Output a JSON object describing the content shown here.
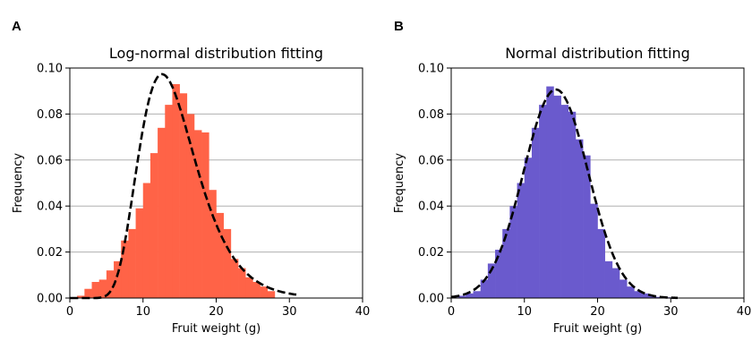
{
  "chart_data": [
    {
      "type": "bar",
      "panel_label": "A",
      "title": "Log-normal distribution fitting",
      "xlabel": "Fruit weight (g)",
      "ylabel": "Frequency",
      "xlim": [
        0,
        40
      ],
      "ylim": [
        0,
        0.1
      ],
      "xticks": [
        0,
        10,
        20,
        30,
        40
      ],
      "yticks": [
        0.0,
        0.02,
        0.04,
        0.06,
        0.08,
        0.1
      ],
      "yticks_labels": [
        "0.00",
        "0.02",
        "0.04",
        "0.06",
        "0.08",
        "0.10"
      ],
      "grid": "y",
      "bar_color": "#ff6347",
      "fit_line_color": "#000000",
      "bin_width": 1,
      "bins": [
        {
          "x": 0,
          "y": 0.0003
        },
        {
          "x": 1,
          "y": 0.001
        },
        {
          "x": 2,
          "y": 0.004
        },
        {
          "x": 3,
          "y": 0.007
        },
        {
          "x": 4,
          "y": 0.008
        },
        {
          "x": 5,
          "y": 0.012
        },
        {
          "x": 6,
          "y": 0.016
        },
        {
          "x": 7,
          "y": 0.025
        },
        {
          "x": 8,
          "y": 0.03
        },
        {
          "x": 9,
          "y": 0.039
        },
        {
          "x": 10,
          "y": 0.05
        },
        {
          "x": 11,
          "y": 0.063
        },
        {
          "x": 12,
          "y": 0.074
        },
        {
          "x": 13,
          "y": 0.084
        },
        {
          "x": 14,
          "y": 0.093
        },
        {
          "x": 15,
          "y": 0.089
        },
        {
          "x": 16,
          "y": 0.08
        },
        {
          "x": 17,
          "y": 0.073
        },
        {
          "x": 18,
          "y": 0.072
        },
        {
          "x": 19,
          "y": 0.047
        },
        {
          "x": 20,
          "y": 0.037
        },
        {
          "x": 21,
          "y": 0.03
        },
        {
          "x": 22,
          "y": 0.017
        },
        {
          "x": 23,
          "y": 0.013
        },
        {
          "x": 24,
          "y": 0.009
        },
        {
          "x": 25,
          "y": 0.007
        },
        {
          "x": 26,
          "y": 0.005
        },
        {
          "x": 27,
          "y": 0.003
        }
      ],
      "fit_curve": {
        "distribution": "lognormal",
        "mu": 2.63,
        "sigma": 0.31
      }
    },
    {
      "type": "bar",
      "panel_label": "B",
      "title": "Normal distribution fitting",
      "xlabel": "Fruit weight (g)",
      "ylabel": "Frequency",
      "xlim": [
        0,
        40
      ],
      "ylim": [
        0,
        0.1
      ],
      "xticks": [
        0,
        10,
        20,
        30,
        40
      ],
      "yticks": [
        0.0,
        0.02,
        0.04,
        0.06,
        0.08,
        0.1
      ],
      "yticks_labels": [
        "0.00",
        "0.02",
        "0.04",
        "0.06",
        "0.08",
        "0.10"
      ],
      "grid": "y",
      "bar_color": "#6a5acd",
      "fit_line_color": "#000000",
      "bin_width": 1,
      "bins": [
        {
          "x": 0,
          "y": 0.0003
        },
        {
          "x": 1,
          "y": 0.001
        },
        {
          "x": 2,
          "y": 0.002
        },
        {
          "x": 3,
          "y": 0.003
        },
        {
          "x": 4,
          "y": 0.008
        },
        {
          "x": 5,
          "y": 0.015
        },
        {
          "x": 6,
          "y": 0.021
        },
        {
          "x": 7,
          "y": 0.03
        },
        {
          "x": 8,
          "y": 0.04
        },
        {
          "x": 9,
          "y": 0.05
        },
        {
          "x": 10,
          "y": 0.061
        },
        {
          "x": 11,
          "y": 0.074
        },
        {
          "x": 12,
          "y": 0.084
        },
        {
          "x": 13,
          "y": 0.092
        },
        {
          "x": 14,
          "y": 0.088
        },
        {
          "x": 15,
          "y": 0.084
        },
        {
          "x": 16,
          "y": 0.081
        },
        {
          "x": 17,
          "y": 0.069
        },
        {
          "x": 18,
          "y": 0.062
        },
        {
          "x": 19,
          "y": 0.041
        },
        {
          "x": 20,
          "y": 0.03
        },
        {
          "x": 21,
          "y": 0.016
        },
        {
          "x": 22,
          "y": 0.013
        },
        {
          "x": 23,
          "y": 0.008
        },
        {
          "x": 24,
          "y": 0.005
        },
        {
          "x": 25,
          "y": 0.003
        },
        {
          "x": 26,
          "y": 0.002
        },
        {
          "x": 27,
          "y": 0.001
        },
        {
          "x": 28,
          "y": 0.0005
        },
        {
          "x": 29,
          "y": 0.0003
        }
      ],
      "fit_curve": {
        "distribution": "normal",
        "mean": 14.3,
        "sd": 4.4
      }
    }
  ]
}
